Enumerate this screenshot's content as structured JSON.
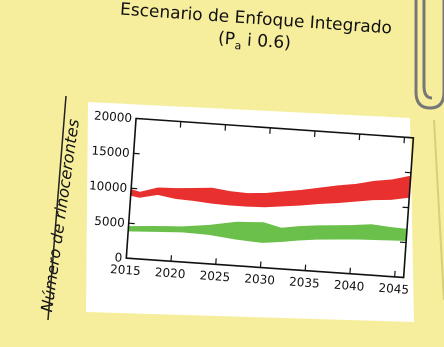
{
  "title_line1": "Escenario de Enfoque Integrado",
  "title_line2_prefix": "(P",
  "title_line2_subscript": "a",
  "title_line2_suffix": " i 0.6)",
  "chart_data": {
    "type": "area",
    "title": "Escenario de Enfoque Integrado (Pa i 0.6)",
    "ylabel": "Número de rinocerontes",
    "xlabel": "",
    "xlim": [
      2015,
      2046
    ],
    "ylim": [
      0,
      20000
    ],
    "x_ticks": [
      2015,
      2020,
      2025,
      2030,
      2035,
      2040,
      2045
    ],
    "y_ticks": [
      0,
      5000,
      10000,
      15000,
      20000
    ],
    "grid": false,
    "series": [
      {
        "color": "#e8302e",
        "points": [
          {
            "x": 2015,
            "low": 9000,
            "high": 9800
          },
          {
            "x": 2016,
            "low": 8800,
            "high": 9500
          },
          {
            "x": 2018,
            "low": 9400,
            "high": 10300
          },
          {
            "x": 2020,
            "low": 9000,
            "high": 10400
          },
          {
            "x": 2022,
            "low": 8900,
            "high": 10600
          },
          {
            "x": 2024,
            "low": 8700,
            "high": 10800
          },
          {
            "x": 2026,
            "low": 8600,
            "high": 10500
          },
          {
            "x": 2028,
            "low": 8600,
            "high": 10400
          },
          {
            "x": 2030,
            "low": 8700,
            "high": 10600
          },
          {
            "x": 2032,
            "low": 9000,
            "high": 11000
          },
          {
            "x": 2034,
            "low": 9300,
            "high": 11400
          },
          {
            "x": 2036,
            "low": 9700,
            "high": 11900
          },
          {
            "x": 2038,
            "low": 10000,
            "high": 12400
          },
          {
            "x": 2040,
            "low": 10400,
            "high": 12800
          },
          {
            "x": 2042,
            "low": 10800,
            "high": 13400
          },
          {
            "x": 2044,
            "low": 11000,
            "high": 13800
          },
          {
            "x": 2046,
            "low": 11500,
            "high": 14500
          }
        ]
      },
      {
        "color": "#6ac04a",
        "points": [
          {
            "x": 2015,
            "low": 3900,
            "high": 4500
          },
          {
            "x": 2018,
            "low": 4100,
            "high": 4800
          },
          {
            "x": 2021,
            "low": 4300,
            "high": 5000
          },
          {
            "x": 2024,
            "low": 4200,
            "high": 5500
          },
          {
            "x": 2027,
            "low": 3800,
            "high": 6200
          },
          {
            "x": 2030,
            "low": 3600,
            "high": 6400
          },
          {
            "x": 2032,
            "low": 3900,
            "high": 5800
          },
          {
            "x": 2034,
            "low": 4300,
            "high": 6200
          },
          {
            "x": 2036,
            "low": 4600,
            "high": 6500
          },
          {
            "x": 2038,
            "low": 4800,
            "high": 6700
          },
          {
            "x": 2040,
            "low": 5000,
            "high": 6900
          },
          {
            "x": 2042,
            "low": 5100,
            "high": 7200
          },
          {
            "x": 2044,
            "low": 5200,
            "high": 7000
          },
          {
            "x": 2046,
            "low": 5300,
            "high": 6900
          }
        ]
      }
    ]
  }
}
